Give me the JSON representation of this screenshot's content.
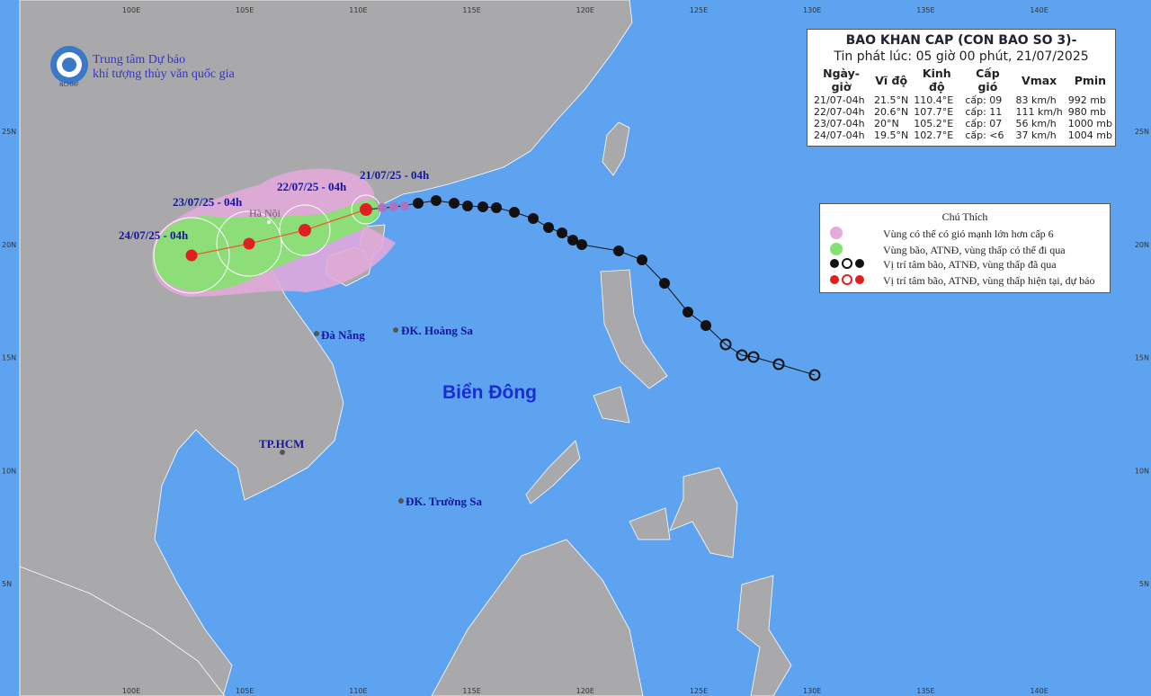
{
  "logo": {
    "line1": "Trung tâm Dự báo",
    "line2": "khí tượng thủy văn quốc gia",
    "abbr": "NCHMF"
  },
  "header": {
    "title": "BAO KHAN CAP (CON BAO SO 3)-",
    "subtitle": "Tin phát lúc: 05 giờ 00 phút, 21/07/2025"
  },
  "table": {
    "columns": [
      "Ngày-giờ",
      "Vĩ độ",
      "Kinh độ",
      "Cấp gió",
      "Vmax",
      "Pmin"
    ],
    "rows": [
      [
        "21/07-04h",
        "21.5°N",
        "110.4°E",
        "cấp: 09",
        "83 km/h",
        "992 mb"
      ],
      [
        "22/07-04h",
        "20.6°N",
        "107.7°E",
        "cấp: 11",
        "111 km/h",
        "980 mb"
      ],
      [
        "23/07-04h",
        "20°N",
        "105.2°E",
        "cấp: 07",
        "56 km/h",
        "1000 mb"
      ],
      [
        "24/07-04h",
        "19.5°N",
        "102.7°E",
        "cấp: <6",
        "37 km/h",
        "1004 mb"
      ]
    ]
  },
  "legend": {
    "title": "Chú Thích",
    "items": [
      "Vùng có thể có gió mạnh lớn hơn cấp 6",
      "Vùng bão, ATNĐ, vùng thấp có thể đi qua",
      "Vị trí tâm bão, ATNĐ, vùng thấp đã qua",
      "Vị trí tâm bão, ATNĐ, vùng thấp hiện tại, dự báo"
    ]
  },
  "track_labels": [
    "21/07/25 - 04h",
    "22/07/25 - 04h",
    "23/07/25 - 04h",
    "24/07/25 - 04h"
  ],
  "places": {
    "hanoi": "Hà Nội",
    "danang": "Đà Nẵng",
    "hoangsa": "ĐK. Hoàng Sa",
    "sea": "Biển Đông",
    "hcm": "TP.HCM",
    "truongsa": "ĐK. Trường Sa"
  },
  "lon_labels": [
    "100E",
    "105E",
    "110E",
    "115E",
    "120E",
    "125E",
    "130E",
    "135E",
    "140E"
  ],
  "lat_labels": [
    "25N",
    "20N",
    "15N",
    "10N",
    "5N"
  ]
}
